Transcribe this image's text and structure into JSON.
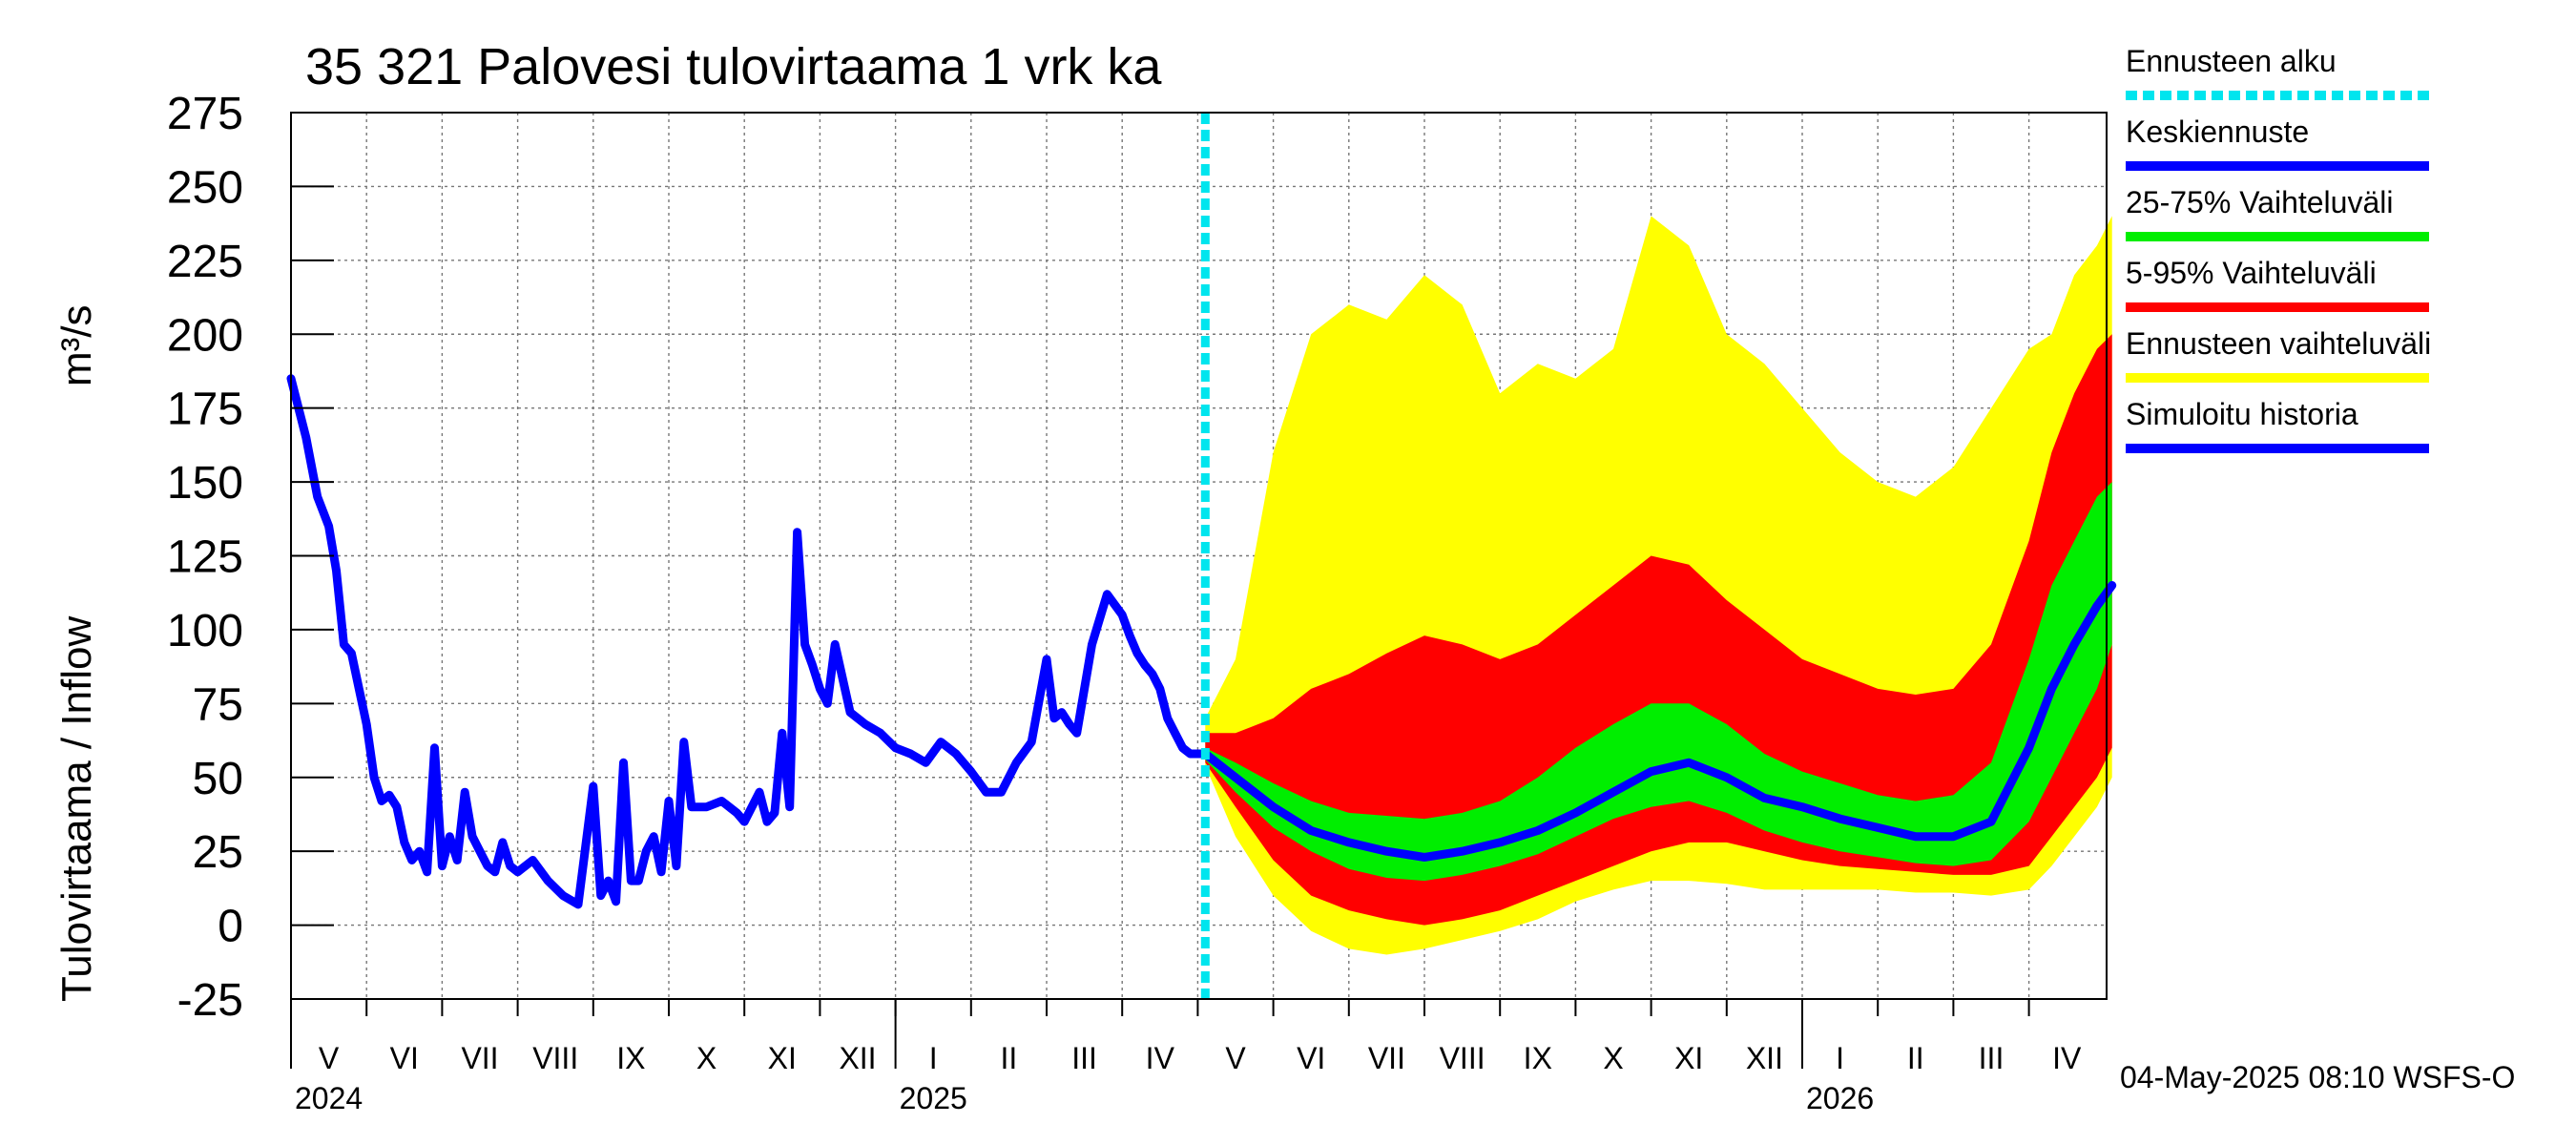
{
  "chart_data": {
    "type": "area",
    "title": "35 321 Palovesi tulovirtaama 1 vrk ka",
    "ylabel_left": "Tulovirtaama / Inflow",
    "ylabel_unit": "m³/s",
    "ylim": [
      -25,
      275
    ],
    "yticks": [
      275,
      250,
      225,
      200,
      175,
      150,
      125,
      100,
      75,
      50,
      25,
      0,
      -25
    ],
    "yticks_text": [
      "275",
      "250",
      "225",
      "200",
      "175",
      "150",
      "125",
      "100",
      "75",
      "50",
      "25",
      "0",
      "-25"
    ],
    "x_start_month_index": 0,
    "x_end_month_index": 24.1,
    "forecast_start_month_index": 12.1,
    "months": [
      "V",
      "VI",
      "VII",
      "VIII",
      "IX",
      "X",
      "XI",
      "XII",
      "I",
      "II",
      "III",
      "IV",
      "V",
      "VI",
      "VII",
      "VIII",
      "IX",
      "X",
      "XI",
      "XII",
      "I",
      "II",
      "III",
      "IV"
    ],
    "years": [
      {
        "label": "2024",
        "month_index": 0
      },
      {
        "label": "2025",
        "month_index": 8
      },
      {
        "label": "2026",
        "month_index": 20
      }
    ],
    "footer": "04-May-2025 08:10 WSFS-O",
    "legend": [
      {
        "label": "Ennusteen alku",
        "color": "#00e5ee",
        "style": "dotted"
      },
      {
        "label": "Keskiennuste",
        "color": "#0000ff",
        "style": "solid"
      },
      {
        "label": "25-75% Vaihteluväli",
        "color": "#00ee00",
        "style": "solid"
      },
      {
        "label": "5-95% Vaihteluväli",
        "color": "#ff0000",
        "style": "solid"
      },
      {
        "label": "Ennusteen vaihteluväli",
        "color": "#ffff00",
        "style": "solid"
      },
      {
        "label": "Simuloitu historia",
        "color": "#0000ff",
        "style": "solid"
      }
    ],
    "history": {
      "name": "Simuloitu historia",
      "color": "#0000ff",
      "x": [
        0,
        0.1,
        0.2,
        0.35,
        0.5,
        0.6,
        0.7,
        0.8,
        0.9,
        1.0,
        1.1,
        1.2,
        1.3,
        1.4,
        1.5,
        1.6,
        1.7,
        1.8,
        1.9,
        2.0,
        2.1,
        2.2,
        2.3,
        2.4,
        2.5,
        2.6,
        2.7,
        2.8,
        2.9,
        3.0,
        3.2,
        3.4,
        3.6,
        3.8,
        4.0,
        4.1,
        4.2,
        4.3,
        4.4,
        4.5,
        4.6,
        4.7,
        4.8,
        4.9,
        5.0,
        5.1,
        5.2,
        5.3,
        5.5,
        5.7,
        5.9,
        6.0,
        6.1,
        6.2,
        6.3,
        6.4,
        6.5,
        6.6,
        6.7,
        6.8,
        6.9,
        7.0,
        7.1,
        7.2,
        7.4,
        7.6,
        7.8,
        8.0,
        8.2,
        8.4,
        8.6,
        8.8,
        9.0,
        9.2,
        9.4,
        9.6,
        9.8,
        10.0,
        10.1,
        10.2,
        10.3,
        10.4,
        10.6,
        10.8,
        11.0,
        11.1,
        11.2,
        11.3,
        11.4,
        11.5,
        11.6,
        11.7,
        11.8,
        11.9,
        12.0,
        12.1
      ],
      "values": [
        185,
        175,
        165,
        145,
        135,
        120,
        95,
        92,
        80,
        68,
        50,
        42,
        44,
        40,
        28,
        22,
        25,
        18,
        60,
        20,
        30,
        22,
        45,
        30,
        25,
        20,
        18,
        28,
        20,
        18,
        22,
        15,
        10,
        7,
        47,
        10,
        15,
        8,
        55,
        15,
        15,
        25,
        30,
        18,
        42,
        20,
        62,
        40,
        40,
        42,
        38,
        35,
        40,
        45,
        35,
        38,
        65,
        40,
        133,
        95,
        88,
        80,
        75,
        95,
        72,
        68,
        65,
        60,
        58,
        55,
        62,
        58,
        52,
        45,
        45,
        55,
        62,
        90,
        70,
        72,
        68,
        65,
        95,
        112,
        105,
        98,
        92,
        88,
        85,
        80,
        70,
        65,
        60,
        58,
        58,
        58
      ]
    },
    "forecast": {
      "x": [
        12.1,
        12.5,
        13.0,
        13.5,
        14.0,
        14.5,
        15.0,
        15.5,
        16.0,
        16.5,
        17.0,
        17.5,
        18.0,
        18.5,
        19.0,
        19.5,
        20.0,
        20.5,
        21.0,
        21.5,
        22.0,
        22.5,
        23.0,
        23.3,
        23.6,
        23.9,
        24.1
      ],
      "median": [
        58,
        50,
        40,
        32,
        28,
        25,
        23,
        25,
        28,
        32,
        38,
        45,
        52,
        55,
        50,
        43,
        40,
        36,
        33,
        30,
        30,
        35,
        60,
        80,
        95,
        108,
        115
      ],
      "p25": [
        56,
        45,
        33,
        25,
        19,
        16,
        15,
        17,
        20,
        24,
        30,
        36,
        40,
        42,
        38,
        32,
        28,
        25,
        23,
        21,
        20,
        22,
        35,
        50,
        65,
        80,
        95
      ],
      "p75": [
        60,
        55,
        48,
        42,
        38,
        37,
        36,
        38,
        42,
        50,
        60,
        68,
        75,
        75,
        68,
        58,
        52,
        48,
        44,
        42,
        44,
        55,
        90,
        115,
        130,
        145,
        150
      ],
      "p5": [
        55,
        40,
        22,
        10,
        5,
        2,
        0,
        2,
        5,
        10,
        15,
        20,
        25,
        28,
        28,
        25,
        22,
        20,
        19,
        18,
        17,
        17,
        20,
        30,
        40,
        50,
        60
      ],
      "p95": [
        65,
        65,
        70,
        80,
        85,
        92,
        98,
        95,
        90,
        95,
        105,
        115,
        125,
        122,
        110,
        100,
        90,
        85,
        80,
        78,
        80,
        95,
        130,
        160,
        180,
        195,
        200
      ],
      "min": [
        54,
        30,
        10,
        -2,
        -8,
        -10,
        -8,
        -5,
        -2,
        2,
        8,
        12,
        15,
        15,
        14,
        12,
        12,
        12,
        12,
        11,
        11,
        10,
        12,
        20,
        30,
        40,
        50
      ],
      "max": [
        70,
        90,
        160,
        200,
        210,
        205,
        220,
        210,
        180,
        190,
        185,
        195,
        240,
        230,
        200,
        190,
        175,
        160,
        150,
        145,
        155,
        175,
        195,
        200,
        220,
        230,
        240
      ]
    }
  }
}
